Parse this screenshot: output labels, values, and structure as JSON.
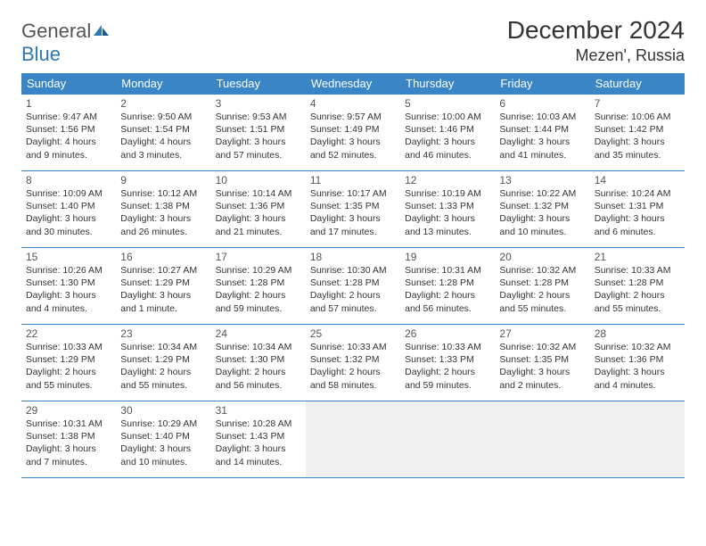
{
  "brand": {
    "part1": "General",
    "part2": "Blue"
  },
  "title": "December 2024",
  "location": "Mezen', Russia",
  "colors": {
    "header_bg": "#3a85c6",
    "header_text": "#ffffff",
    "border": "#3a85c6",
    "body_text": "#333333",
    "daynum_text": "#555555",
    "empty_bg": "#f0f0f0",
    "brand_gray": "#555555",
    "brand_blue": "#2d77b5"
  },
  "day_headers": [
    "Sunday",
    "Monday",
    "Tuesday",
    "Wednesday",
    "Thursday",
    "Friday",
    "Saturday"
  ],
  "weeks": [
    [
      {
        "n": "1",
        "sr": "Sunrise: 9:47 AM",
        "ss": "Sunset: 1:56 PM",
        "dl": "Daylight: 4 hours and 9 minutes."
      },
      {
        "n": "2",
        "sr": "Sunrise: 9:50 AM",
        "ss": "Sunset: 1:54 PM",
        "dl": "Daylight: 4 hours and 3 minutes."
      },
      {
        "n": "3",
        "sr": "Sunrise: 9:53 AM",
        "ss": "Sunset: 1:51 PM",
        "dl": "Daylight: 3 hours and 57 minutes."
      },
      {
        "n": "4",
        "sr": "Sunrise: 9:57 AM",
        "ss": "Sunset: 1:49 PM",
        "dl": "Daylight: 3 hours and 52 minutes."
      },
      {
        "n": "5",
        "sr": "Sunrise: 10:00 AM",
        "ss": "Sunset: 1:46 PM",
        "dl": "Daylight: 3 hours and 46 minutes."
      },
      {
        "n": "6",
        "sr": "Sunrise: 10:03 AM",
        "ss": "Sunset: 1:44 PM",
        "dl": "Daylight: 3 hours and 41 minutes."
      },
      {
        "n": "7",
        "sr": "Sunrise: 10:06 AM",
        "ss": "Sunset: 1:42 PM",
        "dl": "Daylight: 3 hours and 35 minutes."
      }
    ],
    [
      {
        "n": "8",
        "sr": "Sunrise: 10:09 AM",
        "ss": "Sunset: 1:40 PM",
        "dl": "Daylight: 3 hours and 30 minutes."
      },
      {
        "n": "9",
        "sr": "Sunrise: 10:12 AM",
        "ss": "Sunset: 1:38 PM",
        "dl": "Daylight: 3 hours and 26 minutes."
      },
      {
        "n": "10",
        "sr": "Sunrise: 10:14 AM",
        "ss": "Sunset: 1:36 PM",
        "dl": "Daylight: 3 hours and 21 minutes."
      },
      {
        "n": "11",
        "sr": "Sunrise: 10:17 AM",
        "ss": "Sunset: 1:35 PM",
        "dl": "Daylight: 3 hours and 17 minutes."
      },
      {
        "n": "12",
        "sr": "Sunrise: 10:19 AM",
        "ss": "Sunset: 1:33 PM",
        "dl": "Daylight: 3 hours and 13 minutes."
      },
      {
        "n": "13",
        "sr": "Sunrise: 10:22 AM",
        "ss": "Sunset: 1:32 PM",
        "dl": "Daylight: 3 hours and 10 minutes."
      },
      {
        "n": "14",
        "sr": "Sunrise: 10:24 AM",
        "ss": "Sunset: 1:31 PM",
        "dl": "Daylight: 3 hours and 6 minutes."
      }
    ],
    [
      {
        "n": "15",
        "sr": "Sunrise: 10:26 AM",
        "ss": "Sunset: 1:30 PM",
        "dl": "Daylight: 3 hours and 4 minutes."
      },
      {
        "n": "16",
        "sr": "Sunrise: 10:27 AM",
        "ss": "Sunset: 1:29 PM",
        "dl": "Daylight: 3 hours and 1 minute."
      },
      {
        "n": "17",
        "sr": "Sunrise: 10:29 AM",
        "ss": "Sunset: 1:28 PM",
        "dl": "Daylight: 2 hours and 59 minutes."
      },
      {
        "n": "18",
        "sr": "Sunrise: 10:30 AM",
        "ss": "Sunset: 1:28 PM",
        "dl": "Daylight: 2 hours and 57 minutes."
      },
      {
        "n": "19",
        "sr": "Sunrise: 10:31 AM",
        "ss": "Sunset: 1:28 PM",
        "dl": "Daylight: 2 hours and 56 minutes."
      },
      {
        "n": "20",
        "sr": "Sunrise: 10:32 AM",
        "ss": "Sunset: 1:28 PM",
        "dl": "Daylight: 2 hours and 55 minutes."
      },
      {
        "n": "21",
        "sr": "Sunrise: 10:33 AM",
        "ss": "Sunset: 1:28 PM",
        "dl": "Daylight: 2 hours and 55 minutes."
      }
    ],
    [
      {
        "n": "22",
        "sr": "Sunrise: 10:33 AM",
        "ss": "Sunset: 1:29 PM",
        "dl": "Daylight: 2 hours and 55 minutes."
      },
      {
        "n": "23",
        "sr": "Sunrise: 10:34 AM",
        "ss": "Sunset: 1:29 PM",
        "dl": "Daylight: 2 hours and 55 minutes."
      },
      {
        "n": "24",
        "sr": "Sunrise: 10:34 AM",
        "ss": "Sunset: 1:30 PM",
        "dl": "Daylight: 2 hours and 56 minutes."
      },
      {
        "n": "25",
        "sr": "Sunrise: 10:33 AM",
        "ss": "Sunset: 1:32 PM",
        "dl": "Daylight: 2 hours and 58 minutes."
      },
      {
        "n": "26",
        "sr": "Sunrise: 10:33 AM",
        "ss": "Sunset: 1:33 PM",
        "dl": "Daylight: 2 hours and 59 minutes."
      },
      {
        "n": "27",
        "sr": "Sunrise: 10:32 AM",
        "ss": "Sunset: 1:35 PM",
        "dl": "Daylight: 3 hours and 2 minutes."
      },
      {
        "n": "28",
        "sr": "Sunrise: 10:32 AM",
        "ss": "Sunset: 1:36 PM",
        "dl": "Daylight: 3 hours and 4 minutes."
      }
    ],
    [
      {
        "n": "29",
        "sr": "Sunrise: 10:31 AM",
        "ss": "Sunset: 1:38 PM",
        "dl": "Daylight: 3 hours and 7 minutes."
      },
      {
        "n": "30",
        "sr": "Sunrise: 10:29 AM",
        "ss": "Sunset: 1:40 PM",
        "dl": "Daylight: 3 hours and 10 minutes."
      },
      {
        "n": "31",
        "sr": "Sunrise: 10:28 AM",
        "ss": "Sunset: 1:43 PM",
        "dl": "Daylight: 3 hours and 14 minutes."
      },
      null,
      null,
      null,
      null
    ]
  ]
}
